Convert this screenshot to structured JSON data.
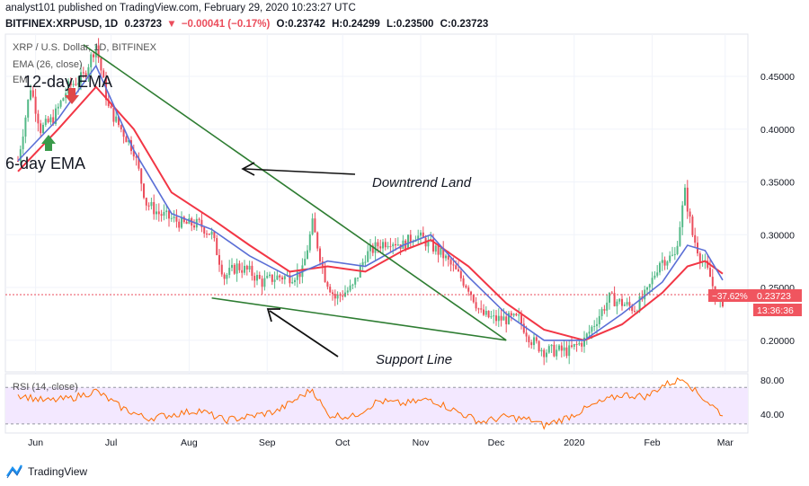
{
  "header": {
    "published_line": "analyst101 published on TradingView.com, February 29, 2020 10:23:27 UTC",
    "symbol_line_prefix": "BITFINEX:XRPUSD, 1D",
    "last": "0.23723",
    "change": "−0.00041 (−0.17%)",
    "o": "O:0.23742",
    "h": "H:0.24299",
    "l": "L:0.23500",
    "c": "C:0.23723"
  },
  "legend": {
    "title": "XRP / U.S. Dollar, 1D, BITFINEX",
    "ema_line": "EMA (26, close)",
    "ema_line2": "EM"
  },
  "annotations": {
    "ema12": "12-day EMA",
    "ema6": "6-day EMA",
    "downtrend": "Downtrend Land",
    "support": "Support Line"
  },
  "price_badges": {
    "change_pct": "−37.62%",
    "price": "0.23723",
    "timer": "13:36:36"
  },
  "rsi": {
    "label": "RSI (14, close)",
    "upper": "80.00",
    "lower": "40.00"
  },
  "footer": {
    "brand": "TradingView"
  },
  "colors": {
    "candle_up": "#53b987",
    "candle_down": "#eb4d5c",
    "ema_red": "#f23645",
    "ema_blue": "#5b6fd6",
    "trendline": "#2e7d32",
    "rsi_line": "#ff6d00",
    "rsi_band": "#f3e8ff",
    "badge_red": "#f0555f",
    "brand_blue": "#2196f3"
  },
  "chart_data": {
    "type": "candlestick",
    "title": "XRP / U.S. Dollar, 1D, BITFINEX",
    "y_ticks": [
      "0.45000",
      "0.40000",
      "0.35000",
      "0.30000",
      "0.25000",
      "0.20000"
    ],
    "x_ticks": [
      "Jun",
      "Jul",
      "Aug",
      "Sep",
      "Oct",
      "Nov",
      "Dec",
      "2020",
      "Feb",
      "Mar"
    ],
    "ylim": [
      0.17,
      0.49
    ],
    "grid": true,
    "close_path": [
      [
        "2019-05-25",
        0.37
      ],
      [
        "2019-05-30",
        0.44
      ],
      [
        "2019-06-03",
        0.4
      ],
      [
        "2019-06-08",
        0.41
      ],
      [
        "2019-06-14",
        0.44
      ],
      [
        "2019-06-20",
        0.45
      ],
      [
        "2019-06-25",
        0.48
      ],
      [
        "2019-06-30",
        0.42
      ],
      [
        "2019-07-05",
        0.4
      ],
      [
        "2019-07-10",
        0.38
      ],
      [
        "2019-07-15",
        0.33
      ],
      [
        "2019-07-20",
        0.32
      ],
      [
        "2019-07-25",
        0.315
      ],
      [
        "2019-07-30",
        0.31
      ],
      [
        "2019-08-05",
        0.31
      ],
      [
        "2019-08-10",
        0.3
      ],
      [
        "2019-08-15",
        0.26
      ],
      [
        "2019-08-20",
        0.27
      ],
      [
        "2019-08-25",
        0.265
      ],
      [
        "2019-08-30",
        0.255
      ],
      [
        "2019-09-05",
        0.26
      ],
      [
        "2019-09-10",
        0.26
      ],
      [
        "2019-09-15",
        0.265
      ],
      [
        "2019-09-19",
        0.31
      ],
      [
        "2019-09-24",
        0.26
      ],
      [
        "2019-09-28",
        0.24
      ],
      [
        "2019-10-05",
        0.25
      ],
      [
        "2019-10-10",
        0.28
      ],
      [
        "2019-10-15",
        0.29
      ],
      [
        "2019-10-20",
        0.295
      ],
      [
        "2019-10-25",
        0.29
      ],
      [
        "2019-10-30",
        0.3
      ],
      [
        "2019-11-05",
        0.29
      ],
      [
        "2019-11-10",
        0.28
      ],
      [
        "2019-11-15",
        0.265
      ],
      [
        "2019-11-20",
        0.25
      ],
      [
        "2019-11-25",
        0.225
      ],
      [
        "2019-11-30",
        0.22
      ],
      [
        "2019-12-05",
        0.22
      ],
      [
        "2019-12-10",
        0.22
      ],
      [
        "2019-12-15",
        0.2
      ],
      [
        "2019-12-20",
        0.19
      ],
      [
        "2019-12-25",
        0.19
      ],
      [
        "2019-12-30",
        0.19
      ],
      [
        "2020-01-05",
        0.2
      ],
      [
        "2020-01-10",
        0.22
      ],
      [
        "2020-01-15",
        0.24
      ],
      [
        "2020-01-20",
        0.235
      ],
      [
        "2020-01-25",
        0.23
      ],
      [
        "2020-01-30",
        0.245
      ],
      [
        "2020-02-04",
        0.275
      ],
      [
        "2020-02-10",
        0.28
      ],
      [
        "2020-02-14",
        0.34
      ],
      [
        "2020-02-17",
        0.3
      ],
      [
        "2020-02-20",
        0.28
      ],
      [
        "2020-02-24",
        0.26
      ],
      [
        "2020-02-27",
        0.235
      ],
      [
        "2020-02-29",
        0.23723
      ]
    ],
    "ema_red": [
      [
        "2019-05-25",
        0.36
      ],
      [
        "2019-06-10",
        0.4
      ],
      [
        "2019-06-25",
        0.44
      ],
      [
        "2019-07-10",
        0.4
      ],
      [
        "2019-07-25",
        0.34
      ],
      [
        "2019-08-10",
        0.315
      ],
      [
        "2019-08-25",
        0.29
      ],
      [
        "2019-09-10",
        0.265
      ],
      [
        "2019-09-25",
        0.27
      ],
      [
        "2019-10-10",
        0.265
      ],
      [
        "2019-10-25",
        0.285
      ],
      [
        "2019-11-05",
        0.295
      ],
      [
        "2019-11-20",
        0.27
      ],
      [
        "2019-12-05",
        0.235
      ],
      [
        "2019-12-20",
        0.21
      ],
      [
        "2020-01-05",
        0.2
      ],
      [
        "2020-01-20",
        0.215
      ],
      [
        "2020-02-05",
        0.245
      ],
      [
        "2020-02-15",
        0.27
      ],
      [
        "2020-02-22",
        0.275
      ],
      [
        "2020-02-29",
        0.263
      ]
    ],
    "ema_blue": [
      [
        "2019-05-25",
        0.37
      ],
      [
        "2019-06-10",
        0.41
      ],
      [
        "2019-06-25",
        0.46
      ],
      [
        "2019-07-10",
        0.38
      ],
      [
        "2019-07-25",
        0.32
      ],
      [
        "2019-08-10",
        0.305
      ],
      [
        "2019-08-25",
        0.28
      ],
      [
        "2019-09-10",
        0.26
      ],
      [
        "2019-09-25",
        0.275
      ],
      [
        "2019-10-10",
        0.27
      ],
      [
        "2019-10-25",
        0.29
      ],
      [
        "2019-11-05",
        0.3
      ],
      [
        "2019-11-20",
        0.26
      ],
      [
        "2019-12-05",
        0.225
      ],
      [
        "2019-12-20",
        0.2
      ],
      [
        "2020-01-05",
        0.2
      ],
      [
        "2020-01-20",
        0.225
      ],
      [
        "2020-02-05",
        0.255
      ],
      [
        "2020-02-15",
        0.29
      ],
      [
        "2020-02-22",
        0.285
      ],
      [
        "2020-02-29",
        0.257
      ]
    ],
    "downtrend_line": [
      [
        "2019-06-20",
        0.48
      ],
      [
        "2019-12-05",
        0.2
      ]
    ],
    "support_line": [
      [
        "2019-08-10",
        0.24
      ],
      [
        "2019-12-05",
        0.2
      ]
    ],
    "rsi_ylim": [
      20,
      85
    ],
    "rsi_levels": [
      70,
      30
    ],
    "rsi_path": [
      [
        "2019-05-25",
        62
      ],
      [
        "2019-06-05",
        55
      ],
      [
        "2019-06-15",
        58
      ],
      [
        "2019-06-25",
        66
      ],
      [
        "2019-07-05",
        48
      ],
      [
        "2019-07-15",
        36
      ],
      [
        "2019-07-25",
        40
      ],
      [
        "2019-08-05",
        45
      ],
      [
        "2019-08-15",
        34
      ],
      [
        "2019-08-25",
        38
      ],
      [
        "2019-09-05",
        44
      ],
      [
        "2019-09-19",
        68
      ],
      [
        "2019-09-25",
        40
      ],
      [
        "2019-10-05",
        38
      ],
      [
        "2019-10-15",
        55
      ],
      [
        "2019-10-25",
        52
      ],
      [
        "2019-11-05",
        57
      ],
      [
        "2019-11-15",
        44
      ],
      [
        "2019-11-25",
        32
      ],
      [
        "2019-12-05",
        38
      ],
      [
        "2019-12-15",
        34
      ],
      [
        "2019-12-20",
        28
      ],
      [
        "2019-12-30",
        38
      ],
      [
        "2020-01-10",
        52
      ],
      [
        "2020-01-20",
        62
      ],
      [
        "2020-01-30",
        60
      ],
      [
        "2020-02-05",
        72
      ],
      [
        "2020-02-14",
        80
      ],
      [
        "2020-02-18",
        66
      ],
      [
        "2020-02-24",
        52
      ],
      [
        "2020-02-29",
        40
      ]
    ]
  }
}
